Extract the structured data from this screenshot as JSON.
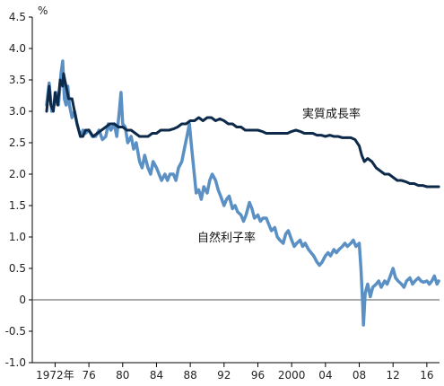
{
  "chart_data": {
    "type": "line",
    "title": "",
    "xlabel": "",
    "ylabel": "%",
    "ylim": [
      -1.0,
      4.5
    ],
    "xlim": [
      1969.3,
      2017.5
    ],
    "grid": false,
    "zero_line": true,
    "y_ticks": [
      {
        "value": 4.5,
        "label": "4.5"
      },
      {
        "value": 4.0,
        "label": "4.0"
      },
      {
        "value": 3.5,
        "label": "3.5"
      },
      {
        "value": 3.0,
        "label": "3.0"
      },
      {
        "value": 2.5,
        "label": "2.5"
      },
      {
        "value": 2.0,
        "label": "2.0"
      },
      {
        "value": 1.5,
        "label": "1.5"
      },
      {
        "value": 1.0,
        "label": "1.0"
      },
      {
        "value": 0.5,
        "label": "0.5"
      },
      {
        "value": 0,
        "label": "0"
      },
      {
        "value": -0.5,
        "label": "-0.5"
      },
      {
        "value": -1.0,
        "label": "-1.0"
      }
    ],
    "x_ticks": [
      {
        "value": 1972,
        "label": "1972年"
      },
      {
        "value": 1976,
        "label": "76"
      },
      {
        "value": 1980,
        "label": "80"
      },
      {
        "value": 1984,
        "label": "84"
      },
      {
        "value": 1988,
        "label": "88"
      },
      {
        "value": 1992,
        "label": "92"
      },
      {
        "value": 1996,
        "label": "96"
      },
      {
        "value": 2000,
        "label": "2000"
      },
      {
        "value": 2004,
        "label": "04"
      },
      {
        "value": 2008,
        "label": "08"
      },
      {
        "value": 2012,
        "label": "12"
      },
      {
        "value": 2016,
        "label": "16"
      }
    ],
    "series": [
      {
        "name": "実質成長率",
        "color": "#0d2a4a",
        "points": [
          [
            1971.0,
            3.0
          ],
          [
            1971.3,
            3.4
          ],
          [
            1971.5,
            3.1
          ],
          [
            1971.8,
            3.0
          ],
          [
            1972.0,
            3.3
          ],
          [
            1972.3,
            3.1
          ],
          [
            1972.6,
            3.5
          ],
          [
            1972.9,
            3.4
          ],
          [
            1973.0,
            3.6
          ],
          [
            1973.3,
            3.4
          ],
          [
            1973.6,
            3.2
          ],
          [
            1974.0,
            3.2
          ],
          [
            1974.3,
            3.0
          ],
          [
            1974.6,
            2.8
          ],
          [
            1975.0,
            2.6
          ],
          [
            1975.3,
            2.6
          ],
          [
            1975.6,
            2.7
          ],
          [
            1976.0,
            2.7
          ],
          [
            1976.5,
            2.6
          ],
          [
            1977.0,
            2.65
          ],
          [
            1977.5,
            2.7
          ],
          [
            1978.0,
            2.75
          ],
          [
            1978.5,
            2.8
          ],
          [
            1979.0,
            2.8
          ],
          [
            1979.5,
            2.75
          ],
          [
            1980.0,
            2.75
          ],
          [
            1980.5,
            2.7
          ],
          [
            1981.0,
            2.7
          ],
          [
            1981.5,
            2.65
          ],
          [
            1982.0,
            2.6
          ],
          [
            1982.5,
            2.6
          ],
          [
            1983.0,
            2.6
          ],
          [
            1983.5,
            2.65
          ],
          [
            1984.0,
            2.65
          ],
          [
            1984.5,
            2.7
          ],
          [
            1985.0,
            2.7
          ],
          [
            1985.5,
            2.7
          ],
          [
            1986.0,
            2.72
          ],
          [
            1986.5,
            2.75
          ],
          [
            1987.0,
            2.8
          ],
          [
            1987.5,
            2.8
          ],
          [
            1988.0,
            2.85
          ],
          [
            1988.5,
            2.85
          ],
          [
            1989.0,
            2.9
          ],
          [
            1989.5,
            2.85
          ],
          [
            1990.0,
            2.9
          ],
          [
            1990.5,
            2.9
          ],
          [
            1991.0,
            2.85
          ],
          [
            1991.5,
            2.88
          ],
          [
            1992.0,
            2.85
          ],
          [
            1992.5,
            2.8
          ],
          [
            1993.0,
            2.8
          ],
          [
            1993.5,
            2.75
          ],
          [
            1994.0,
            2.75
          ],
          [
            1994.5,
            2.7
          ],
          [
            1995.0,
            2.7
          ],
          [
            1995.5,
            2.7
          ],
          [
            1996.0,
            2.7
          ],
          [
            1996.5,
            2.68
          ],
          [
            1997.0,
            2.65
          ],
          [
            1997.5,
            2.65
          ],
          [
            1998.0,
            2.65
          ],
          [
            1998.5,
            2.65
          ],
          [
            1999.0,
            2.65
          ],
          [
            1999.5,
            2.65
          ],
          [
            2000.0,
            2.68
          ],
          [
            2000.5,
            2.7
          ],
          [
            2001.0,
            2.68
          ],
          [
            2001.5,
            2.65
          ],
          [
            2002.0,
            2.65
          ],
          [
            2002.5,
            2.65
          ],
          [
            2003.0,
            2.62
          ],
          [
            2003.5,
            2.62
          ],
          [
            2004.0,
            2.6
          ],
          [
            2004.5,
            2.62
          ],
          [
            2005.0,
            2.6
          ],
          [
            2005.5,
            2.6
          ],
          [
            2006.0,
            2.58
          ],
          [
            2006.5,
            2.58
          ],
          [
            2007.0,
            2.58
          ],
          [
            2007.5,
            2.55
          ],
          [
            2008.0,
            2.45
          ],
          [
            2008.3,
            2.3
          ],
          [
            2008.6,
            2.2
          ],
          [
            2009.0,
            2.25
          ],
          [
            2009.5,
            2.2
          ],
          [
            2010.0,
            2.1
          ],
          [
            2010.5,
            2.05
          ],
          [
            2011.0,
            2.0
          ],
          [
            2011.5,
            2.0
          ],
          [
            2012.0,
            1.95
          ],
          [
            2012.5,
            1.9
          ],
          [
            2013.0,
            1.9
          ],
          [
            2013.5,
            1.88
          ],
          [
            2014.0,
            1.85
          ],
          [
            2014.5,
            1.85
          ],
          [
            2015.0,
            1.82
          ],
          [
            2015.5,
            1.82
          ],
          [
            2016.0,
            1.8
          ],
          [
            2016.5,
            1.8
          ],
          [
            2017.0,
            1.8
          ],
          [
            2017.4,
            1.8
          ]
        ]
      },
      {
        "name": "自然利子率",
        "color": "#5b90c4",
        "points": [
          [
            1971.0,
            3.1
          ],
          [
            1971.3,
            3.45
          ],
          [
            1971.6,
            3.0
          ],
          [
            1971.9,
            3.1
          ],
          [
            1972.1,
            3.3
          ],
          [
            1972.4,
            3.1
          ],
          [
            1972.7,
            3.6
          ],
          [
            1972.9,
            3.8
          ],
          [
            1973.1,
            3.2
          ],
          [
            1973.3,
            3.1
          ],
          [
            1973.5,
            3.4
          ],
          [
            1973.7,
            3.1
          ],
          [
            1974.0,
            2.9
          ],
          [
            1974.3,
            3.0
          ],
          [
            1974.6,
            2.8
          ],
          [
            1975.0,
            2.6
          ],
          [
            1975.3,
            2.7
          ],
          [
            1975.6,
            2.65
          ],
          [
            1976.0,
            2.7
          ],
          [
            1976.4,
            2.6
          ],
          [
            1976.8,
            2.6
          ],
          [
            1977.2,
            2.7
          ],
          [
            1977.6,
            2.55
          ],
          [
            1978.0,
            2.6
          ],
          [
            1978.3,
            2.8
          ],
          [
            1978.6,
            2.7
          ],
          [
            1979.0,
            2.8
          ],
          [
            1979.3,
            2.6
          ],
          [
            1979.6,
            3.0
          ],
          [
            1979.8,
            3.3
          ],
          [
            1980.0,
            2.8
          ],
          [
            1980.3,
            2.75
          ],
          [
            1980.6,
            2.5
          ],
          [
            1981.0,
            2.6
          ],
          [
            1981.3,
            2.4
          ],
          [
            1981.6,
            2.5
          ],
          [
            1982.0,
            2.2
          ],
          [
            1982.3,
            2.1
          ],
          [
            1982.6,
            2.3
          ],
          [
            1983.0,
            2.1
          ],
          [
            1983.3,
            2.0
          ],
          [
            1983.6,
            2.2
          ],
          [
            1984.0,
            2.1
          ],
          [
            1984.3,
            2.0
          ],
          [
            1984.6,
            1.9
          ],
          [
            1985.0,
            2.0
          ],
          [
            1985.3,
            1.9
          ],
          [
            1985.6,
            2.0
          ],
          [
            1986.0,
            2.0
          ],
          [
            1986.3,
            1.9
          ],
          [
            1986.6,
            2.1
          ],
          [
            1987.0,
            2.2
          ],
          [
            1987.3,
            2.4
          ],
          [
            1987.6,
            2.6
          ],
          [
            1987.9,
            2.8
          ],
          [
            1988.1,
            2.5
          ],
          [
            1988.4,
            2.1
          ],
          [
            1988.7,
            1.7
          ],
          [
            1989.0,
            1.75
          ],
          [
            1989.3,
            1.6
          ],
          [
            1989.6,
            1.8
          ],
          [
            1990.0,
            1.7
          ],
          [
            1990.3,
            1.9
          ],
          [
            1990.6,
            2.0
          ],
          [
            1991.0,
            1.9
          ],
          [
            1991.3,
            1.75
          ],
          [
            1991.6,
            1.65
          ],
          [
            1992.0,
            1.5
          ],
          [
            1992.3,
            1.6
          ],
          [
            1992.6,
            1.65
          ],
          [
            1993.0,
            1.45
          ],
          [
            1993.3,
            1.5
          ],
          [
            1993.6,
            1.4
          ],
          [
            1994.0,
            1.35
          ],
          [
            1994.3,
            1.25
          ],
          [
            1994.6,
            1.35
          ],
          [
            1995.0,
            1.55
          ],
          [
            1995.3,
            1.45
          ],
          [
            1995.6,
            1.3
          ],
          [
            1996.0,
            1.35
          ],
          [
            1996.3,
            1.25
          ],
          [
            1996.6,
            1.3
          ],
          [
            1997.0,
            1.3
          ],
          [
            1997.3,
            1.2
          ],
          [
            1997.6,
            1.1
          ],
          [
            1998.0,
            1.15
          ],
          [
            1998.3,
            1.0
          ],
          [
            1998.6,
            0.95
          ],
          [
            1999.0,
            0.9
          ],
          [
            1999.3,
            1.05
          ],
          [
            1999.6,
            1.1
          ],
          [
            2000.0,
            0.95
          ],
          [
            2000.3,
            0.85
          ],
          [
            2000.6,
            0.9
          ],
          [
            2001.0,
            0.95
          ],
          [
            2001.3,
            0.85
          ],
          [
            2001.6,
            0.9
          ],
          [
            2002.0,
            0.8
          ],
          [
            2002.3,
            0.75
          ],
          [
            2002.6,
            0.7
          ],
          [
            2003.0,
            0.6
          ],
          [
            2003.3,
            0.55
          ],
          [
            2003.6,
            0.6
          ],
          [
            2004.0,
            0.7
          ],
          [
            2004.3,
            0.75
          ],
          [
            2004.6,
            0.7
          ],
          [
            2005.0,
            0.8
          ],
          [
            2005.3,
            0.75
          ],
          [
            2005.6,
            0.8
          ],
          [
            2006.0,
            0.85
          ],
          [
            2006.3,
            0.9
          ],
          [
            2006.6,
            0.85
          ],
          [
            2007.0,
            0.9
          ],
          [
            2007.3,
            0.95
          ],
          [
            2007.6,
            0.85
          ],
          [
            2008.0,
            0.9
          ],
          [
            2008.2,
            0.5
          ],
          [
            2008.4,
            -0.05
          ],
          [
            2008.5,
            -0.4
          ],
          [
            2008.7,
            0.1
          ],
          [
            2009.0,
            0.25
          ],
          [
            2009.3,
            0.05
          ],
          [
            2009.6,
            0.2
          ],
          [
            2010.0,
            0.25
          ],
          [
            2010.3,
            0.3
          ],
          [
            2010.6,
            0.2
          ],
          [
            2011.0,
            0.3
          ],
          [
            2011.3,
            0.25
          ],
          [
            2011.6,
            0.35
          ],
          [
            2012.0,
            0.5
          ],
          [
            2012.3,
            0.35
          ],
          [
            2012.6,
            0.3
          ],
          [
            2013.0,
            0.25
          ],
          [
            2013.3,
            0.2
          ],
          [
            2013.6,
            0.3
          ],
          [
            2014.0,
            0.35
          ],
          [
            2014.3,
            0.25
          ],
          [
            2014.6,
            0.3
          ],
          [
            2015.0,
            0.35
          ],
          [
            2015.3,
            0.3
          ],
          [
            2015.6,
            0.28
          ],
          [
            2016.0,
            0.3
          ],
          [
            2016.3,
            0.25
          ],
          [
            2016.6,
            0.3
          ],
          [
            2016.9,
            0.38
          ],
          [
            2017.2,
            0.25
          ],
          [
            2017.4,
            0.3
          ]
        ]
      }
    ]
  }
}
